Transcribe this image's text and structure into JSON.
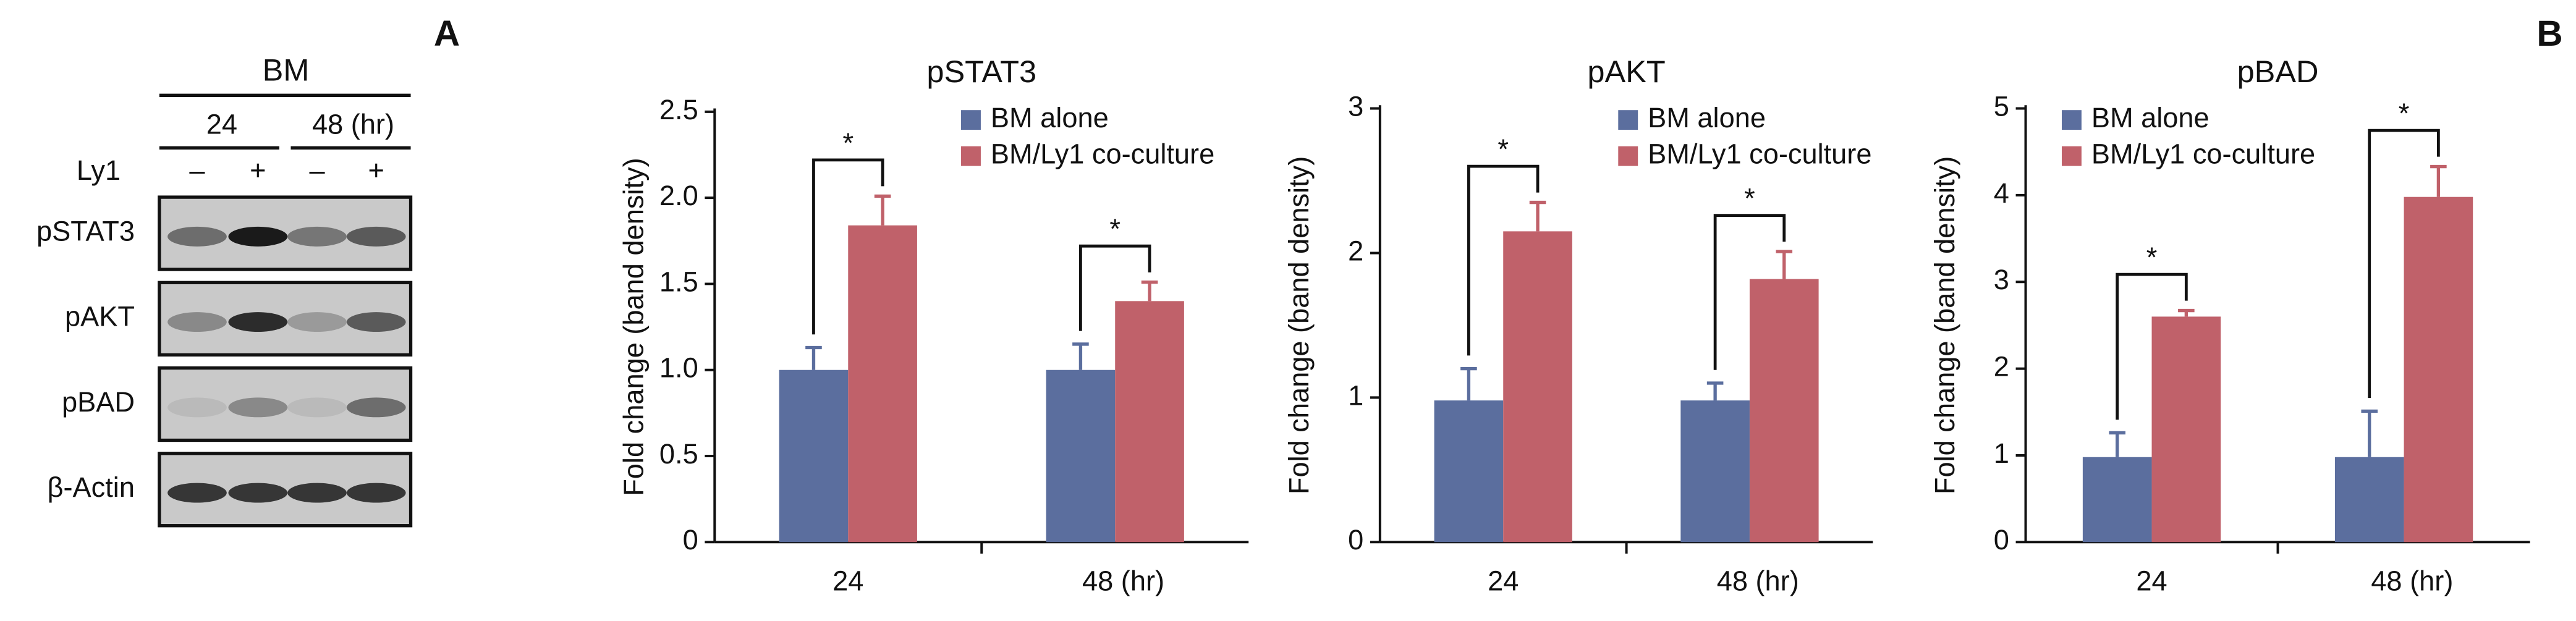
{
  "panel_labels": [
    "A",
    "B"
  ],
  "blot": {
    "group": "BM",
    "times": [
      "24",
      "48 (hr)"
    ],
    "treatment": "Ly1",
    "signs": [
      "–",
      "+",
      "–",
      "+"
    ],
    "rows": [
      "pSTAT3",
      "pAKT",
      "pBAD",
      "β-Actin"
    ]
  },
  "chart_data": [
    {
      "type": "bar",
      "title": "pSTAT3",
      "ylabel": "Fold change (band density)",
      "categories": [
        "24",
        "48 (hr)"
      ],
      "series": [
        {
          "name": "BM alone",
          "color": "#5b6e9e",
          "values": [
            1.0,
            1.0
          ],
          "errors": [
            0.13,
            0.15
          ]
        },
        {
          "name": "BM/Ly1 co-culture",
          "color": "#c0616a",
          "values": [
            1.84,
            1.4
          ],
          "errors": [
            0.17,
            0.11
          ]
        }
      ],
      "annotations": [
        "*",
        "*"
      ],
      "ylim": [
        0,
        2.5
      ],
      "yticks": [
        0,
        0.5,
        {
          "value": 1,
          "label": "1.0"
        },
        1.5,
        {
          "value": 2,
          "label": "2.0"
        },
        2.5
      ]
    },
    {
      "type": "bar",
      "title": "pAKT",
      "ylabel": "Fold change (band density)",
      "categories": [
        "24",
        "48 (hr)"
      ],
      "series": [
        {
          "name": "BM alone",
          "color": "#5b6e9e",
          "values": [
            0.98,
            0.98
          ],
          "errors": [
            0.22,
            0.12
          ]
        },
        {
          "name": "BM/Ly1 co-culture",
          "color": "#c0616a",
          "values": [
            2.15,
            1.82
          ],
          "errors": [
            0.2,
            0.19
          ]
        }
      ],
      "annotations": [
        "*",
        "*"
      ],
      "ylim": [
        0,
        3
      ],
      "yticks": [
        0,
        1,
        2,
        3
      ]
    },
    {
      "type": "bar",
      "title": "pBAD",
      "ylabel": "Fold change (band density)",
      "categories": [
        "24",
        "48 (hr)"
      ],
      "series": [
        {
          "name": "BM alone",
          "color": "#5b6e9e",
          "values": [
            0.98,
            0.98
          ],
          "errors": [
            0.28,
            0.53
          ]
        },
        {
          "name": "BM/Ly1 co-culture",
          "color": "#c0616a",
          "values": [
            2.6,
            3.98
          ],
          "errors": [
            0.07,
            0.35
          ]
        }
      ],
      "annotations": [
        "*",
        "*"
      ],
      "ylim": [
        0,
        5
      ],
      "yticks": [
        0,
        1,
        2,
        3,
        4,
        5
      ]
    }
  ]
}
